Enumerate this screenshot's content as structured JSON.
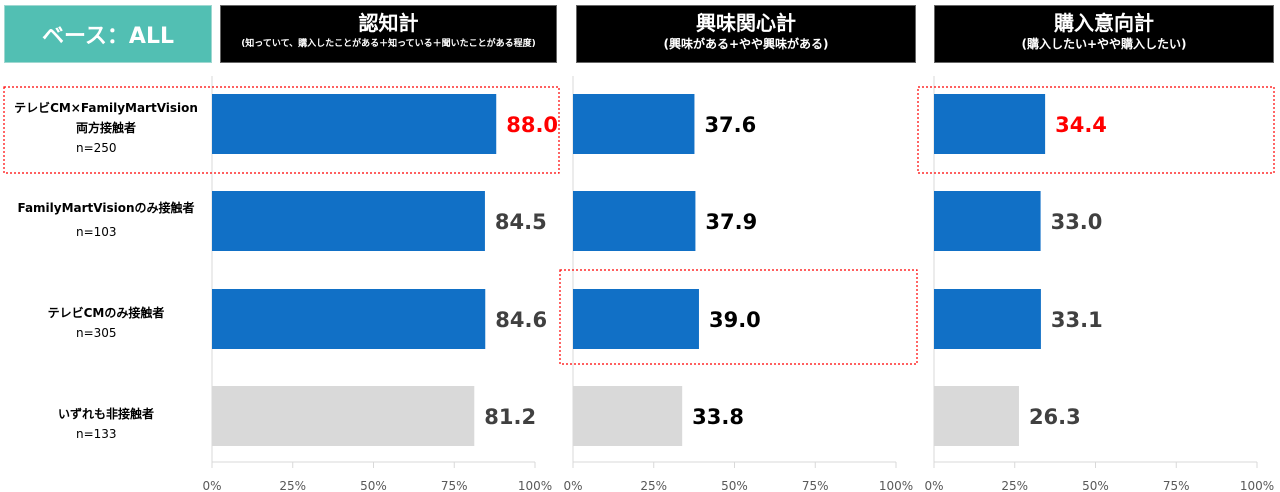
{
  "base_label": "ベース：ALL",
  "colors": {
    "highlight_bar": "#1170c6",
    "other_bar": "#d9d9d9",
    "highlight_text": "#ff0000",
    "outline": "#ff0000"
  },
  "rows": [
    {
      "name": "テレビCM×FamilyMartVision",
      "name2": "両方接触者",
      "n": "n=250"
    },
    {
      "name": "FamilyMartVisionのみ接触者",
      "name2": "",
      "n": "n=103"
    },
    {
      "name": "テレビCMのみ接触者",
      "name2": "",
      "n": "n=305"
    },
    {
      "name": "いずれも非接触者",
      "name2": "",
      "n": "n=133"
    }
  ],
  "chart_data": [
    {
      "type": "bar",
      "title": "認知計",
      "subtitle": "(知っていて、購入したことがある＋知っている＋聞いたことがある程度)",
      "categories": [
        "テレビCM×FamilyMartVision両方接触者",
        "FamilyMartVisionのみ接触者",
        "テレビCMのみ接触者",
        "いずれも非接触者"
      ],
      "values": [
        88.0,
        84.5,
        84.6,
        81.2
      ],
      "labels": [
        "88.0",
        "84.5",
        "84.6",
        "81.2"
      ],
      "highlight": [
        0
      ],
      "xlim": [
        0,
        100
      ],
      "ticks": [
        "0%",
        "25%",
        "50%",
        "75%",
        "100%"
      ]
    },
    {
      "type": "bar",
      "title": "興味関心計",
      "subtitle": "(興味がある+やや興味がある)",
      "categories": [
        "テレビCM×FamilyMartVision両方接触者",
        "FamilyMartVisionのみ接触者",
        "テレビCMのみ接触者",
        "いずれも非接触者"
      ],
      "values": [
        37.6,
        37.9,
        39.0,
        33.8
      ],
      "labels": [
        "37.6",
        "37.9",
        "39.0",
        "33.8"
      ],
      "highlight": [
        2
      ],
      "xlim": [
        0,
        100
      ],
      "ticks": [
        "0%",
        "25%",
        "50%",
        "75%",
        "100%"
      ]
    },
    {
      "type": "bar",
      "title": "購入意向計",
      "subtitle": "(購入したい+やや購入したい)",
      "categories": [
        "テレビCM×FamilyMartVision両方接触者",
        "FamilyMartVisionのみ接触者",
        "テレビCMのみ接触者",
        "いずれも非接触者"
      ],
      "values": [
        34.4,
        33.0,
        33.1,
        26.3
      ],
      "labels": [
        "34.4",
        "33.0",
        "33.1",
        "26.3"
      ],
      "highlight": [
        0
      ],
      "xlim": [
        0,
        100
      ],
      "ticks": [
        "0%",
        "25%",
        "50%",
        "75%",
        "100%"
      ]
    }
  ]
}
